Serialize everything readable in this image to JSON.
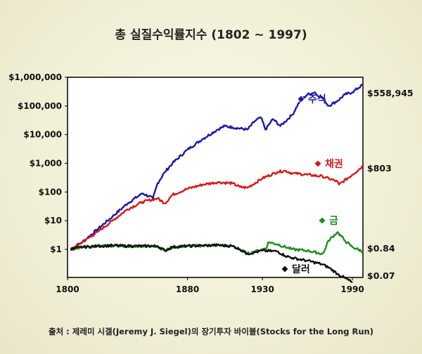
{
  "chart_data": {
    "type": "line",
    "title": "총 실질수익률지수 (1802 ~ 1997)",
    "source": "출처 : 제레미 시겔(Jeremy J. Siegel)의 장기투자 바이블(Stocks for the Long Run)",
    "y_scale": "log",
    "ylim": [
      0.07,
      1000000
    ],
    "xlim": [
      1800,
      1997
    ],
    "x_ticks": [
      {
        "value": 1800,
        "label": "1800"
      },
      {
        "value": 1880,
        "label": "1880"
      },
      {
        "value": 1930,
        "label": "1930"
      },
      {
        "value": 1990,
        "label": "1990"
      }
    ],
    "y_ticks": [
      {
        "value": 1,
        "label": "$1"
      },
      {
        "value": 10,
        "label": "$10"
      },
      {
        "value": 100,
        "label": "$100"
      },
      {
        "value": 1000,
        "label": "$1,000"
      },
      {
        "value": 10000,
        "label": "$10,000"
      },
      {
        "value": 100000,
        "label": "$100,000"
      },
      {
        "value": 1000000,
        "label": "$1,000,000"
      }
    ],
    "grid": false,
    "series": [
      {
        "name": "주식",
        "color": "#1a1aa8",
        "end_label": "$558,945",
        "x": [
          1802,
          1810,
          1820,
          1830,
          1840,
          1850,
          1857,
          1860,
          1865,
          1870,
          1880,
          1890,
          1900,
          1905,
          1910,
          1920,
          1925,
          1929,
          1932,
          1937,
          1942,
          1950,
          1955,
          1960,
          1965,
          1966,
          1970,
          1974,
          1980,
          1985,
          1990,
          1997
        ],
        "values": [
          1,
          1.8,
          5,
          14,
          40,
          90,
          60,
          200,
          500,
          1000,
          3000,
          7000,
          15000,
          20000,
          18000,
          15000,
          30000,
          40000,
          15000,
          35000,
          20000,
          50000,
          150000,
          250000,
          300000,
          250000,
          200000,
          100000,
          150000,
          250000,
          300000,
          558945
        ]
      },
      {
        "name": "채권",
        "color": "#d81818",
        "end_label": "$803",
        "x": [
          1802,
          1810,
          1820,
          1830,
          1840,
          1850,
          1860,
          1865,
          1870,
          1880,
          1890,
          1900,
          1910,
          1915,
          1920,
          1930,
          1940,
          1945,
          1950,
          1960,
          1970,
          1980,
          1981,
          1990,
          1997
        ],
        "values": [
          1,
          1.8,
          4,
          10,
          25,
          45,
          60,
          40,
          80,
          130,
          180,
          220,
          200,
          150,
          140,
          300,
          500,
          550,
          450,
          400,
          350,
          230,
          180,
          400,
          803
        ]
      },
      {
        "name": "금",
        "color": "#1e8c1e",
        "end_label": "$0.84",
        "x": [
          1802,
          1810,
          1820,
          1830,
          1840,
          1850,
          1860,
          1865,
          1870,
          1880,
          1890,
          1900,
          1910,
          1915,
          1920,
          1930,
          1933,
          1934,
          1940,
          1950,
          1960,
          1970,
          1971,
          1974,
          1980,
          1985,
          1990,
          1997
        ],
        "values": [
          1,
          1.2,
          1.3,
          1.35,
          1.3,
          1.3,
          1.3,
          0.9,
          1.2,
          1.3,
          1.35,
          1.4,
          1.3,
          1.0,
          0.7,
          1.0,
          1.2,
          1.8,
          1.5,
          1.0,
          0.9,
          0.7,
          0.8,
          2.0,
          4.0,
          2.0,
          1.2,
          0.84
        ]
      },
      {
        "name": "달러",
        "color": "#111111",
        "end_label": "$0.07",
        "x": [
          1802,
          1810,
          1820,
          1830,
          1840,
          1850,
          1860,
          1865,
          1870,
          1880,
          1890,
          1900,
          1910,
          1915,
          1920,
          1930,
          1940,
          1945,
          1950,
          1960,
          1970,
          1975,
          1980,
          1985,
          1990
        ],
        "values": [
          1,
          1.2,
          1.3,
          1.35,
          1.3,
          1.3,
          1.3,
          0.9,
          1.2,
          1.3,
          1.35,
          1.4,
          1.3,
          1.0,
          0.7,
          0.9,
          0.85,
          0.6,
          0.5,
          0.4,
          0.3,
          0.22,
          0.14,
          0.1,
          0.07
        ]
      }
    ]
  }
}
